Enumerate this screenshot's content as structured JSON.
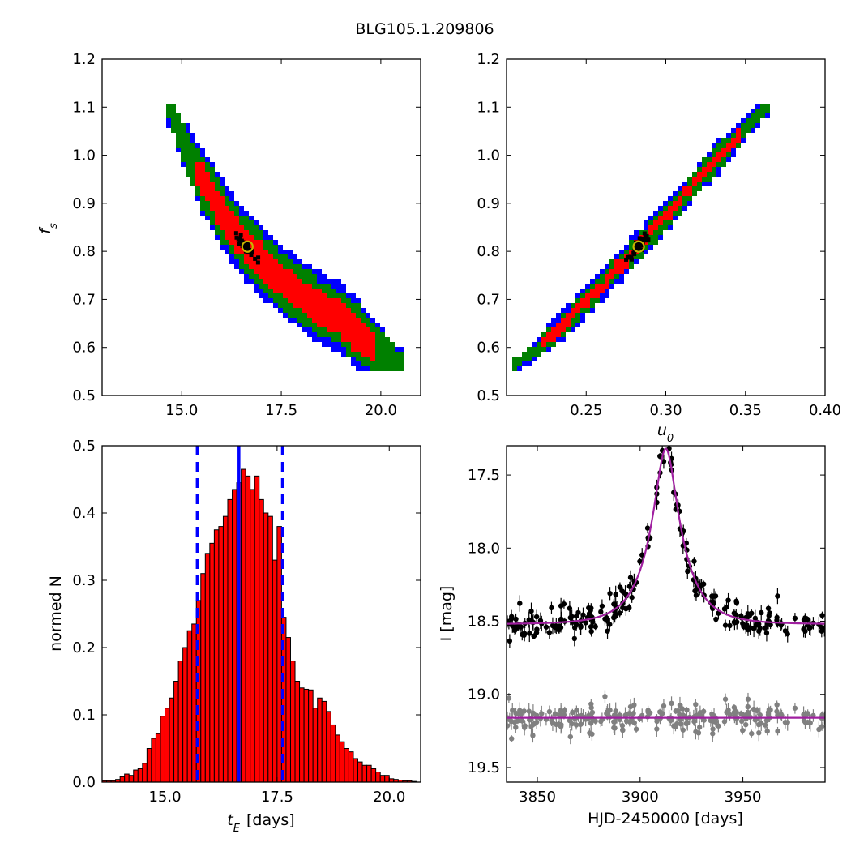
{
  "title": "BLG105.1.209806",
  "colors": {
    "sigma3": "#0000ff",
    "sigma2": "#008000",
    "sigma1": "#ff0000",
    "best": "#000000",
    "marker": "#c8b400",
    "hist_fill": "#ff0000",
    "median_line": "#0000ff",
    "model": "#a020a0",
    "data_main": "#000000",
    "data_resid": "#808080"
  },
  "chart_data": [
    {
      "id": "tE_vs_fs",
      "type": "scatter",
      "xlabel_main": "",
      "xlabel_italic": "",
      "ylabel_italic": "f",
      "ylabel_sub": "s",
      "xlim": [
        13.0,
        21.0
      ],
      "ylim": [
        0.5,
        1.2
      ],
      "xticks": [
        "15.0",
        "17.5",
        "20.0"
      ],
      "xtick_values": [
        15.0,
        17.5,
        20.0
      ],
      "yticks": [
        "0.5",
        "0.6",
        "0.7",
        "0.8",
        "0.9",
        "1.0",
        "1.1",
        "1.2"
      ],
      "ytick_values": [
        0.5,
        0.6,
        0.7,
        0.8,
        0.9,
        1.0,
        1.1,
        1.2
      ],
      "band_axis": [
        [
          14.7,
          1.1
        ],
        [
          15.0,
          1.03
        ],
        [
          15.5,
          0.95
        ],
        [
          16.0,
          0.88
        ],
        [
          16.5,
          0.82
        ],
        [
          17.0,
          0.78
        ],
        [
          17.5,
          0.74
        ],
        [
          18.0,
          0.71
        ],
        [
          18.5,
          0.68
        ],
        [
          19.0,
          0.66
        ],
        [
          19.5,
          0.62
        ],
        [
          20.0,
          0.59
        ],
        [
          20.5,
          0.56
        ]
      ],
      "best_fit": [
        16.65,
        0.81
      ]
    },
    {
      "id": "u0_vs_fs",
      "type": "scatter",
      "xlabel_italic": "u",
      "xlabel_sub": "0",
      "ylabel_italic": "",
      "xlim": [
        0.2,
        0.4
      ],
      "ylim": [
        0.5,
        1.2
      ],
      "xticks": [
        "0.25",
        "0.30",
        "0.35",
        "0.40"
      ],
      "xtick_values": [
        0.25,
        0.3,
        0.35,
        0.4
      ],
      "yticks": [
        "0.5",
        "0.6",
        "0.7",
        "0.8",
        "0.9",
        "1.0",
        "1.1",
        "1.2"
      ],
      "ytick_values": [
        0.5,
        0.6,
        0.7,
        0.8,
        0.9,
        1.0,
        1.1,
        1.2
      ],
      "band_axis": [
        [
          0.207,
          0.565
        ],
        [
          0.22,
          0.6
        ],
        [
          0.24,
          0.66
        ],
        [
          0.26,
          0.73
        ],
        [
          0.283,
          0.81
        ],
        [
          0.3,
          0.87
        ],
        [
          0.32,
          0.95
        ],
        [
          0.34,
          1.02
        ],
        [
          0.362,
          1.1
        ]
      ],
      "best_fit": [
        0.283,
        0.81
      ]
    },
    {
      "id": "tE_histogram",
      "type": "bar",
      "xlabel_italic": "t",
      "xlabel_sub": "E",
      "xlabel_rest": " [days]",
      "ylabel": "normed N",
      "xlim": [
        13.6,
        20.7
      ],
      "ylim": [
        0.0,
        0.5
      ],
      "xticks": [
        "15.0",
        "17.5",
        "20.0"
      ],
      "xtick_values": [
        15.0,
        17.5,
        20.0
      ],
      "yticks": [
        "0.0",
        "0.1",
        "0.2",
        "0.3",
        "0.4",
        "0.5"
      ],
      "ytick_values": [
        0.0,
        0.1,
        0.2,
        0.3,
        0.4,
        0.5
      ],
      "bin_start": 13.6,
      "bin_width": 0.1,
      "values": [
        0.002,
        0.002,
        0.002,
        0.004,
        0.008,
        0.012,
        0.01,
        0.018,
        0.02,
        0.028,
        0.05,
        0.065,
        0.072,
        0.098,
        0.11,
        0.125,
        0.15,
        0.18,
        0.2,
        0.225,
        0.235,
        0.27,
        0.31,
        0.34,
        0.355,
        0.375,
        0.38,
        0.395,
        0.42,
        0.435,
        0.445,
        0.465,
        0.455,
        0.435,
        0.455,
        0.42,
        0.4,
        0.395,
        0.33,
        0.38,
        0.245,
        0.215,
        0.18,
        0.15,
        0.14,
        0.138,
        0.137,
        0.11,
        0.125,
        0.12,
        0.105,
        0.085,
        0.07,
        0.06,
        0.05,
        0.045,
        0.035,
        0.03,
        0.025,
        0.025,
        0.02,
        0.015,
        0.01,
        0.01,
        0.005,
        0.004,
        0.003,
        0.002,
        0.002,
        0.001
      ],
      "median": 16.65,
      "lower": 15.72,
      "upper": 17.62
    },
    {
      "id": "light_curve",
      "type": "scatter",
      "xlabel": "HJD-2450000 [days]",
      "ylabel": "I [mag]",
      "xlim": [
        3835,
        3990
      ],
      "ylim": [
        19.6,
        17.3
      ],
      "xticks": [
        "3850",
        "3900",
        "3950"
      ],
      "xtick_values": [
        3850,
        3900,
        3950
      ],
      "yticks": [
        "17.5",
        "18.0",
        "18.5",
        "19.0",
        "19.5"
      ],
      "ytick_values": [
        17.5,
        18.0,
        18.5,
        19.0,
        19.5
      ],
      "baseline": 18.52,
      "peak_time": 3912.5,
      "peak_mag": 17.32,
      "t_E": 16.65,
      "u0": 0.283,
      "residual_level": 19.16,
      "scatter_main": 0.05,
      "scatter_resid": 0.05
    }
  ]
}
